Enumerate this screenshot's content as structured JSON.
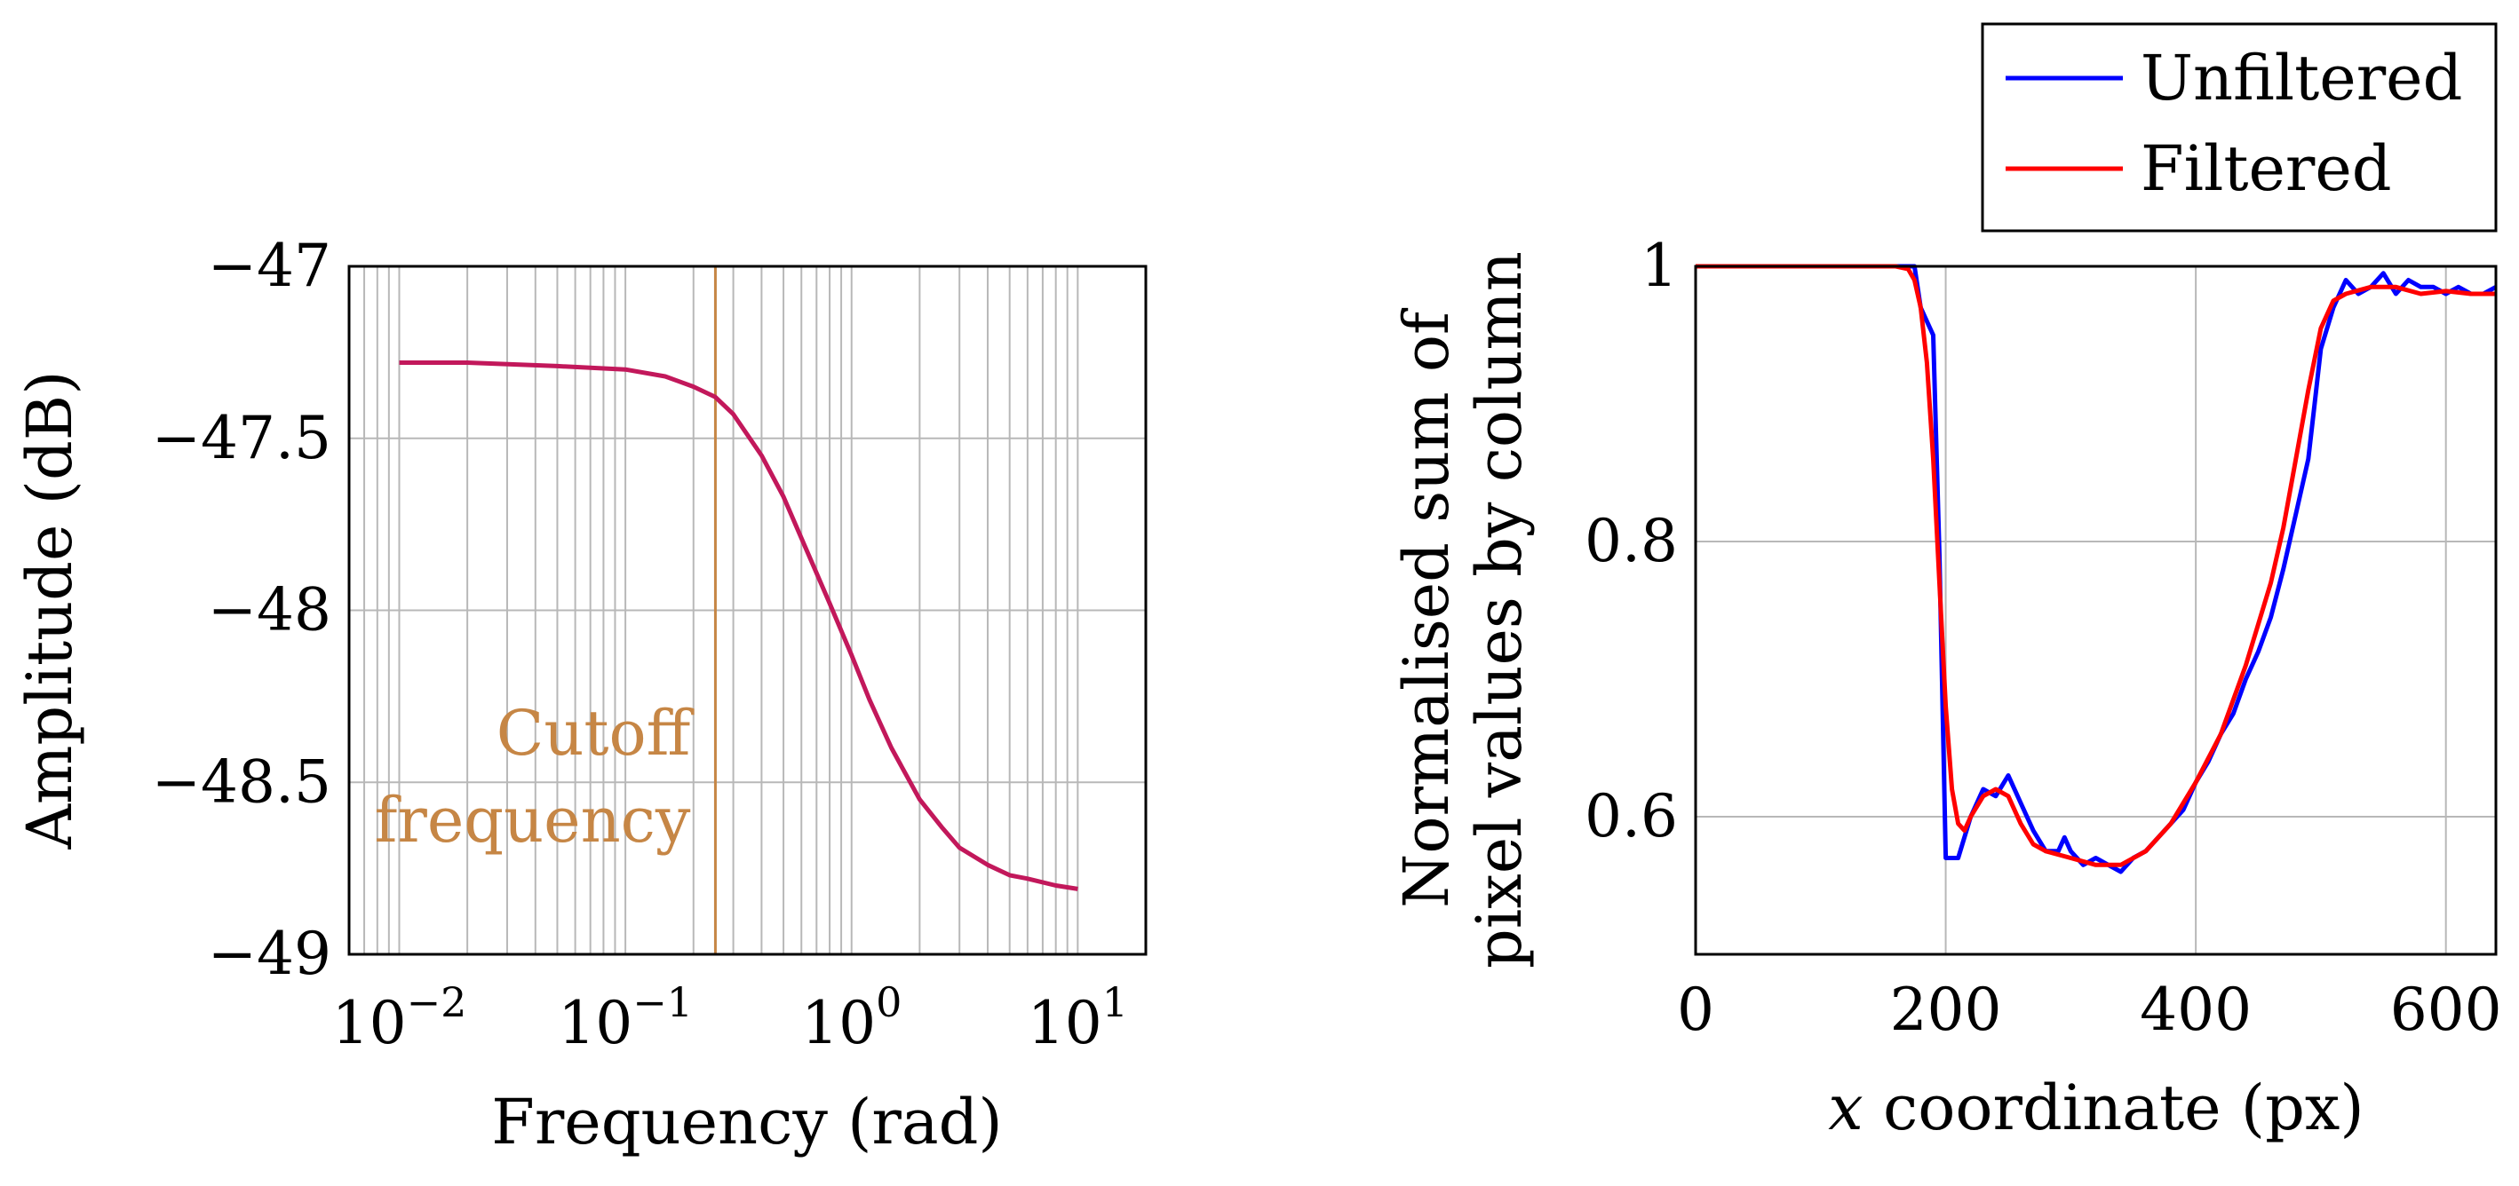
{
  "chart_data": [
    {
      "type": "line",
      "xscale": "log",
      "xlabel": "Frequency (rad)",
      "ylabel": "Amplitude (dB)",
      "xlim": [
        0.006,
        20
      ],
      "ylim": [
        -49,
        -47
      ],
      "xticks": [
        0.01,
        0.1,
        1,
        10
      ],
      "xtick_labels": [
        {
          "base": "10",
          "exp": "−2"
        },
        {
          "base": "10",
          "exp": "−1"
        },
        {
          "base": "10",
          "exp": "0"
        },
        {
          "base": "10",
          "exp": "1"
        }
      ],
      "yticks": [
        -47,
        -47.5,
        -48,
        -48.5,
        -49
      ],
      "ytick_labels": [
        "−47",
        "−47.5",
        "−48",
        "−48.5",
        "−49"
      ],
      "grid": true,
      "series": [
        {
          "name": "Amplitude",
          "color": "#c2185b",
          "x": [
            0.01,
            0.02,
            0.05,
            0.1,
            0.15,
            0.2,
            0.25,
            0.3,
            0.4,
            0.5,
            0.6,
            0.8,
            1.0,
            1.2,
            1.5,
            2,
            2.5,
            3,
            4,
            5,
            6,
            8,
            10
          ],
          "y": [
            -47.28,
            -47.28,
            -47.29,
            -47.3,
            -47.32,
            -47.35,
            -47.38,
            -47.43,
            -47.55,
            -47.67,
            -47.79,
            -47.98,
            -48.13,
            -48.26,
            -48.4,
            -48.55,
            -48.63,
            -48.69,
            -48.74,
            -48.77,
            -48.78,
            -48.8,
            -48.81
          ]
        }
      ],
      "annotations": [
        {
          "type": "vline",
          "x": 0.25,
          "color": "#c68645",
          "lines": [
            "Cutoff",
            "frequency"
          ]
        }
      ]
    },
    {
      "type": "line",
      "xlabel": {
        "italic": "x",
        "rest": " coordinate (px)"
      },
      "ylabel": [
        "Normalised sum of",
        "pixel values by column"
      ],
      "xlim": [
        0,
        640
      ],
      "ylim": [
        0.5,
        1.0
      ],
      "xticks": [
        0,
        200,
        400,
        600
      ],
      "xtick_labels": [
        "0",
        "200",
        "400",
        "600"
      ],
      "yticks": [
        0.6,
        0.8,
        1.0
      ],
      "ytick_labels": [
        "0.6",
        "0.8",
        "1"
      ],
      "grid": true,
      "legend": {
        "position": "top-right",
        "entries": [
          "Unfiltered",
          "Filtered"
        ]
      },
      "series": [
        {
          "name": "Unfiltered",
          "color": "#0000ff",
          "x": [
            0,
            100,
            165,
            175,
            180,
            185,
            190,
            195,
            200,
            205,
            210,
            220,
            230,
            240,
            250,
            255,
            260,
            270,
            280,
            290,
            295,
            300,
            310,
            320,
            330,
            340,
            350,
            360,
            370,
            380,
            390,
            400,
            410,
            420,
            430,
            440,
            450,
            460,
            470,
            480,
            490,
            495,
            500,
            510,
            520,
            530,
            540,
            550,
            560,
            570,
            580,
            590,
            600,
            610,
            620,
            630,
            640
          ],
          "y": [
            1.0,
            1.0,
            1.0,
            1.0,
            0.97,
            0.96,
            0.95,
            0.79,
            0.57,
            0.57,
            0.57,
            0.6,
            0.62,
            0.615,
            0.63,
            0.62,
            0.61,
            0.59,
            0.575,
            0.575,
            0.585,
            0.575,
            0.565,
            0.57,
            0.565,
            0.56,
            0.57,
            0.575,
            0.585,
            0.595,
            0.605,
            0.625,
            0.64,
            0.66,
            0.675,
            0.7,
            0.72,
            0.745,
            0.78,
            0.82,
            0.86,
            0.9,
            0.94,
            0.97,
            0.99,
            0.98,
            0.985,
            0.995,
            0.98,
            0.99,
            0.985,
            0.985,
            0.98,
            0.985,
            0.98,
            0.98,
            0.985
          ]
        },
        {
          "name": "Filtered",
          "color": "#ff0000",
          "x": [
            0,
            100,
            160,
            170,
            175,
            180,
            185,
            190,
            195,
            200,
            205,
            210,
            215,
            220,
            230,
            240,
            250,
            255,
            260,
            270,
            280,
            300,
            320,
            340,
            360,
            380,
            400,
            420,
            440,
            460,
            470,
            480,
            490,
            500,
            510,
            520,
            540,
            560,
            580,
            600,
            620,
            640
          ],
          "y": [
            1.0,
            1.0,
            1.0,
            0.998,
            0.99,
            0.97,
            0.93,
            0.86,
            0.77,
            0.68,
            0.62,
            0.595,
            0.59,
            0.6,
            0.615,
            0.62,
            0.615,
            0.605,
            0.595,
            0.58,
            0.575,
            0.57,
            0.565,
            0.565,
            0.575,
            0.595,
            0.625,
            0.66,
            0.71,
            0.77,
            0.81,
            0.86,
            0.91,
            0.955,
            0.975,
            0.98,
            0.985,
            0.985,
            0.98,
            0.982,
            0.98,
            0.98
          ]
        }
      ]
    }
  ]
}
